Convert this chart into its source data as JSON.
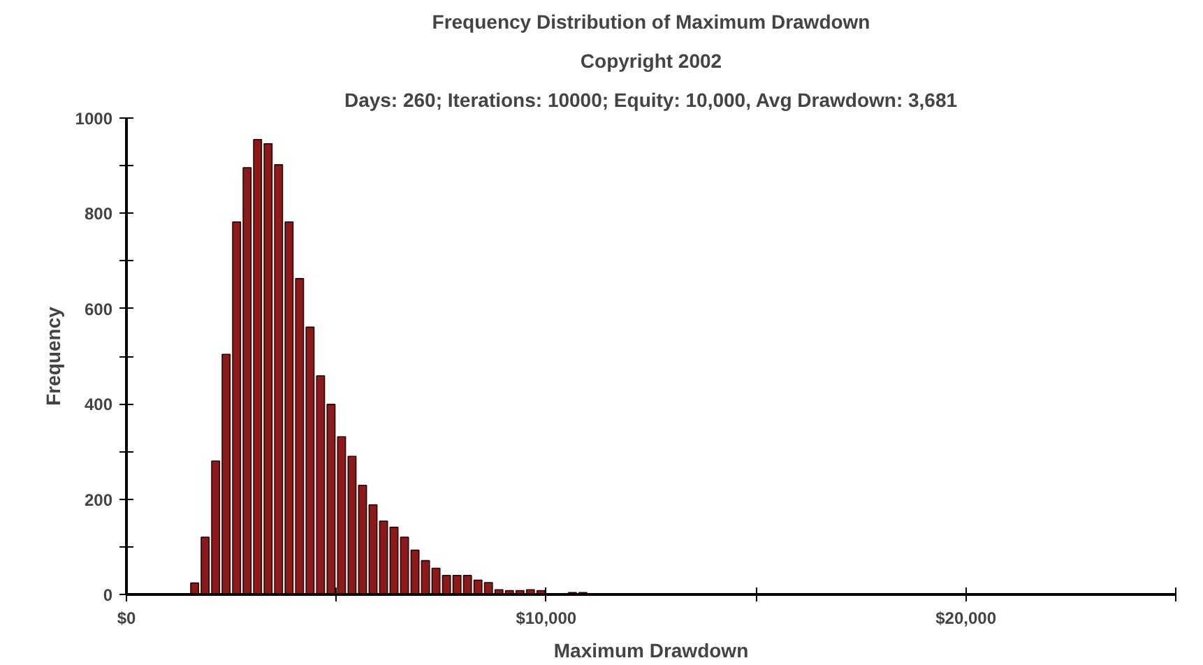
{
  "chart_data": {
    "type": "histogram",
    "title": "Frequency Distribution of Maximum Drawdown",
    "subtitle": [
      "Copyright 2002",
      "Days: 260; Iterations: 10000; Equity: 10,000, Avg Drawdown: 3,681"
    ],
    "xlabel": "Maximum Drawdown",
    "ylabel": "Frequency",
    "color": "#8b1a1a",
    "bins": [
      1500,
      1750,
      2000,
      2250,
      2500,
      2750,
      3000,
      3250,
      3500,
      3750,
      4000,
      4250,
      4500,
      4750,
      5000,
      5250,
      5500,
      5750,
      6000,
      6250,
      6500,
      6750,
      7000,
      7250,
      7500,
      7750,
      8000,
      8250,
      8500,
      8750,
      9000,
      9250,
      9500,
      9750,
      10000,
      10250,
      10500,
      10750,
      11000
    ],
    "values": [
      24,
      120,
      280,
      504,
      782,
      896,
      955,
      946,
      902,
      782,
      663,
      561,
      459,
      399,
      331,
      290,
      229,
      188,
      154,
      141,
      120,
      93,
      71,
      55,
      40,
      40,
      40,
      30,
      25,
      10,
      8,
      8,
      10,
      8,
      null,
      null,
      4,
      4
    ],
    "xlim": [
      0,
      25000
    ],
    "ylim": [
      0,
      1000
    ],
    "xticks": [
      {
        "value": 0,
        "label": "$0"
      },
      {
        "value": 5000,
        "label": null
      },
      {
        "value": 10000,
        "label": "$10,000"
      },
      {
        "value": 15000,
        "label": null
      },
      {
        "value": 20000,
        "label": "$20,000"
      },
      {
        "value": 25000,
        "label": null
      }
    ],
    "yticks": [
      0,
      {
        "value": 100,
        "label": null
      },
      200,
      {
        "value": 300,
        "label": null
      },
      400,
      {
        "value": 500,
        "label": null
      },
      600,
      {
        "value": 700,
        "label": null
      },
      800,
      {
        "value": 900,
        "label": null
      },
      1000
    ],
    "grid": false
  }
}
